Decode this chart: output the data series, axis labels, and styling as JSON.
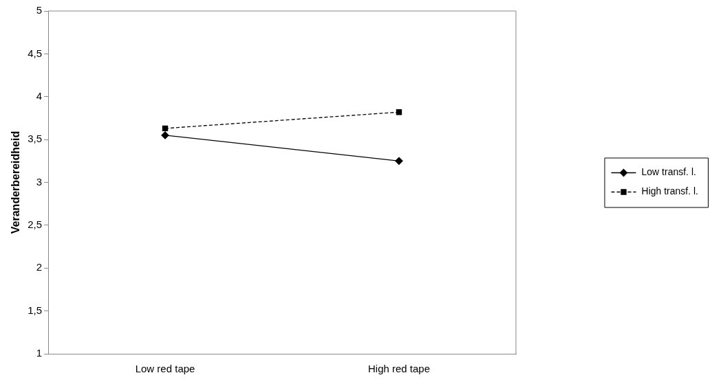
{
  "chart_data": {
    "type": "line",
    "ylabel": "Veranderbereidheid",
    "categories": [
      "Low red tape",
      "High red tape"
    ],
    "series": [
      {
        "name": "Low transf. l.",
        "color": "#000000",
        "values": [
          3.55,
          3.25
        ],
        "marker": "diamond",
        "line_style": "solid"
      },
      {
        "name": "High transf. l.",
        "color": "#000000",
        "values": [
          3.63,
          3.82
        ],
        "marker": "square",
        "line_style": "dashed"
      }
    ],
    "ylim": [
      1,
      5
    ],
    "yticks": [
      1,
      {
        "value": 1.5,
        "label": "1,5"
      },
      2,
      {
        "value": 2.5,
        "label": "2,5"
      },
      3,
      {
        "value": 3.5,
        "label": "3,5"
      },
      4,
      {
        "value": 4.5,
        "label": "4,5"
      },
      5
    ],
    "grid": false,
    "legend": "right"
  }
}
